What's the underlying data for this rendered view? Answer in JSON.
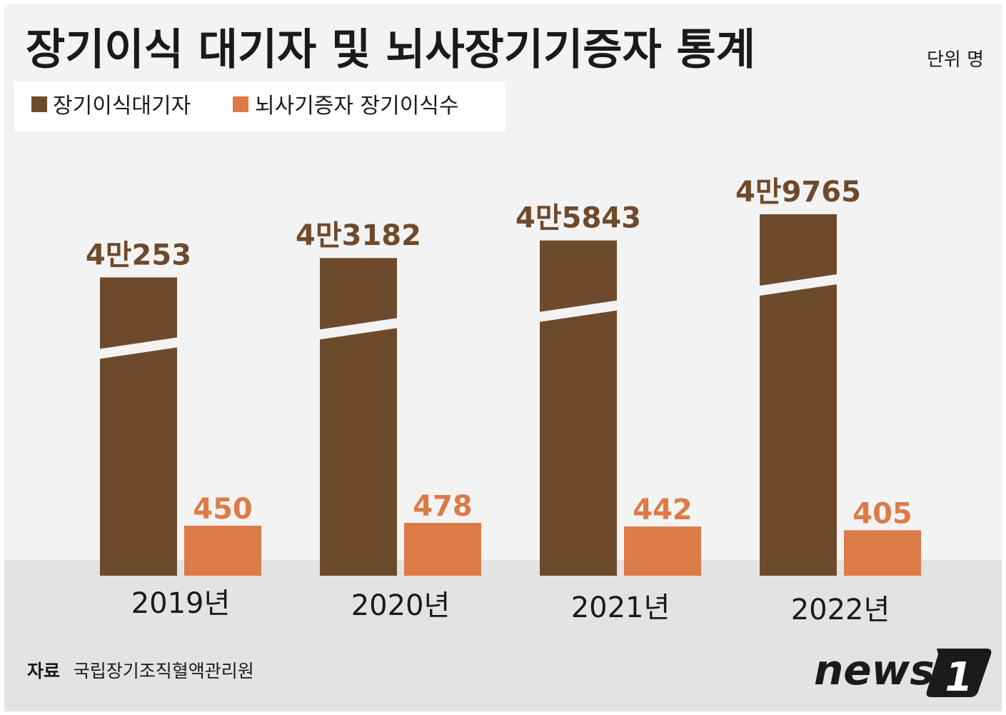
{
  "title": "장기이식 대기자 및 뇌사장기기증자 통계",
  "unit": "단위 명",
  "legend": [
    {
      "label": "장기이식대기자",
      "color": "#6e4a2c"
    },
    {
      "label": "뇌사기증자 장기이식수",
      "color": "#dc7b48"
    }
  ],
  "source": {
    "label": "자료",
    "text": "국립장기조직혈액관리원"
  },
  "logo": {
    "text": "news",
    "mark": "1"
  },
  "colors": {
    "background": "#f3f3f3",
    "floor": "#e3e3e3",
    "waiting_bar": "#6e4a2c",
    "waiting_label": "#6e4a2c",
    "transplant_bar": "#dc7b48",
    "transplant_label": "#dc7b48",
    "text": "#1a1a1a"
  },
  "chart_data": {
    "type": "bar",
    "categories": [
      "2019년",
      "2020년",
      "2021년",
      "2022년"
    ],
    "series": [
      {
        "name": "장기이식대기자",
        "values": [
          40253,
          43182,
          45843,
          49765
        ],
        "labels": [
          "4만253",
          "4만3182",
          "4만5843",
          "4만9765"
        ],
        "axis_break": true
      },
      {
        "name": "뇌사기증자 장기이식수",
        "values": [
          450,
          478,
          442,
          405
        ],
        "labels": [
          "450",
          "478",
          "442",
          "405"
        ]
      }
    ],
    "title": "장기이식 대기자 및 뇌사장기기증자 통계",
    "ylabel": "명",
    "grid": false
  }
}
